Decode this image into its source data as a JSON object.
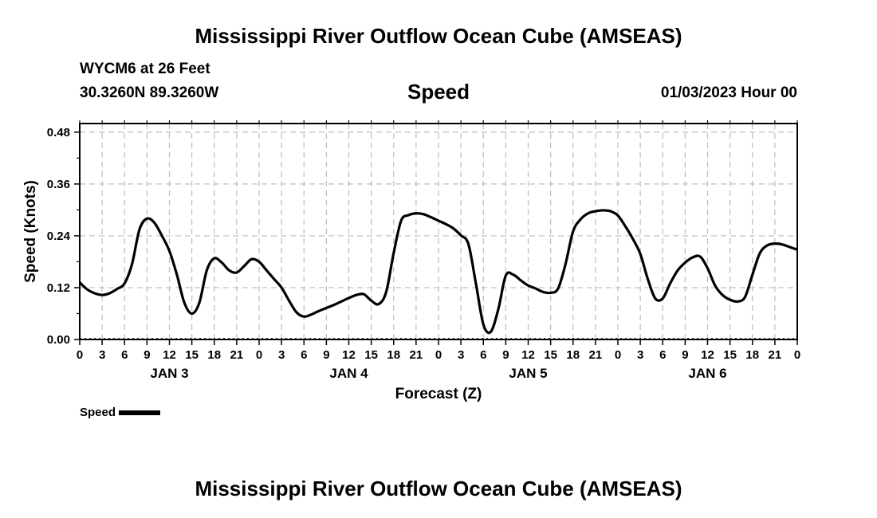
{
  "header": {
    "title": "Mississippi River Outflow Ocean Cube (AMSEAS)",
    "station": "WYCM6 at 26 Feet",
    "coords": "30.3260N  89.3260W",
    "variable": "Speed",
    "datetime": "01/03/2023 Hour 00"
  },
  "footer": {
    "title": "Mississippi River Outflow Ocean Cube (AMSEAS)"
  },
  "legend": {
    "label": "Speed"
  },
  "colors": {
    "line": "#000000",
    "grid": "#bdbdbd"
  },
  "chart_data": {
    "type": "line",
    "title": "Speed",
    "xlabel": "Forecast (Z)",
    "ylabel": "Speed (Knots)",
    "ylim": [
      0,
      0.5
    ],
    "yticks": [
      0.0,
      0.12,
      0.24,
      0.36,
      0.48
    ],
    "ytick_labels": [
      "0.00",
      "0.12",
      "0.24",
      "0.36",
      "0.48"
    ],
    "xlim": [
      0,
      96
    ],
    "xticks": [
      0,
      3,
      6,
      9,
      12,
      15,
      18,
      21,
      24,
      27,
      30,
      33,
      36,
      39,
      42,
      45,
      48,
      51,
      54,
      57,
      60,
      63,
      66,
      69,
      72,
      75,
      78,
      81,
      84,
      87,
      90,
      93,
      96
    ],
    "xtick_labels": [
      "0",
      "3",
      "6",
      "9",
      "12",
      "15",
      "18",
      "21",
      "0",
      "3",
      "6",
      "9",
      "12",
      "15",
      "18",
      "21",
      "0",
      "3",
      "6",
      "9",
      "12",
      "15",
      "18",
      "21",
      "0",
      "3",
      "6",
      "9",
      "12",
      "15",
      "18",
      "21",
      "0"
    ],
    "day_labels": [
      {
        "at": 12,
        "label": "JAN 3"
      },
      {
        "at": 36,
        "label": "JAN 4"
      },
      {
        "at": 60,
        "label": "JAN 5"
      },
      {
        "at": 84,
        "label": "JAN 6"
      }
    ],
    "grid": true,
    "legend_position": "bottom-left",
    "series": [
      {
        "name": "Speed",
        "x": [
          0,
          1,
          2,
          3,
          4,
          5,
          6,
          7,
          8,
          9,
          10,
          11,
          12,
          13,
          14,
          15,
          16,
          17,
          18,
          19,
          20,
          21,
          22,
          23,
          24,
          25,
          26,
          27,
          28,
          29,
          30,
          31,
          32,
          33,
          34,
          35,
          36,
          37,
          38,
          39,
          40,
          41,
          42,
          43,
          44,
          45,
          46,
          47,
          48,
          49,
          50,
          51,
          52,
          53,
          54,
          55,
          56,
          57,
          58,
          59,
          60,
          61,
          62,
          63,
          64,
          65,
          66,
          67,
          68,
          69,
          70,
          71,
          72,
          73,
          74,
          75,
          76,
          77,
          78,
          79,
          80,
          81,
          82,
          83,
          84,
          85,
          86,
          87,
          88,
          89,
          90,
          91,
          92,
          93,
          94,
          95,
          96
        ],
        "values": [
          0.132,
          0.116,
          0.107,
          0.103,
          0.107,
          0.117,
          0.13,
          0.175,
          0.255,
          0.28,
          0.27,
          0.24,
          0.205,
          0.15,
          0.085,
          0.06,
          0.085,
          0.16,
          0.188,
          0.178,
          0.16,
          0.155,
          0.17,
          0.186,
          0.18,
          0.16,
          0.14,
          0.12,
          0.09,
          0.063,
          0.053,
          0.058,
          0.066,
          0.073,
          0.08,
          0.088,
          0.096,
          0.103,
          0.105,
          0.09,
          0.082,
          0.11,
          0.2,
          0.275,
          0.288,
          0.292,
          0.29,
          0.283,
          0.275,
          0.267,
          0.257,
          0.241,
          0.221,
          0.13,
          0.035,
          0.018,
          0.07,
          0.148,
          0.15,
          0.137,
          0.125,
          0.118,
          0.11,
          0.108,
          0.118,
          0.175,
          0.25,
          0.278,
          0.292,
          0.297,
          0.299,
          0.297,
          0.287,
          0.262,
          0.233,
          0.198,
          0.14,
          0.095,
          0.095,
          0.13,
          0.16,
          0.178,
          0.19,
          0.192,
          0.165,
          0.125,
          0.103,
          0.092,
          0.088,
          0.098,
          0.15,
          0.2,
          0.218,
          0.222,
          0.22,
          0.214,
          0.208
        ]
      }
    ]
  }
}
